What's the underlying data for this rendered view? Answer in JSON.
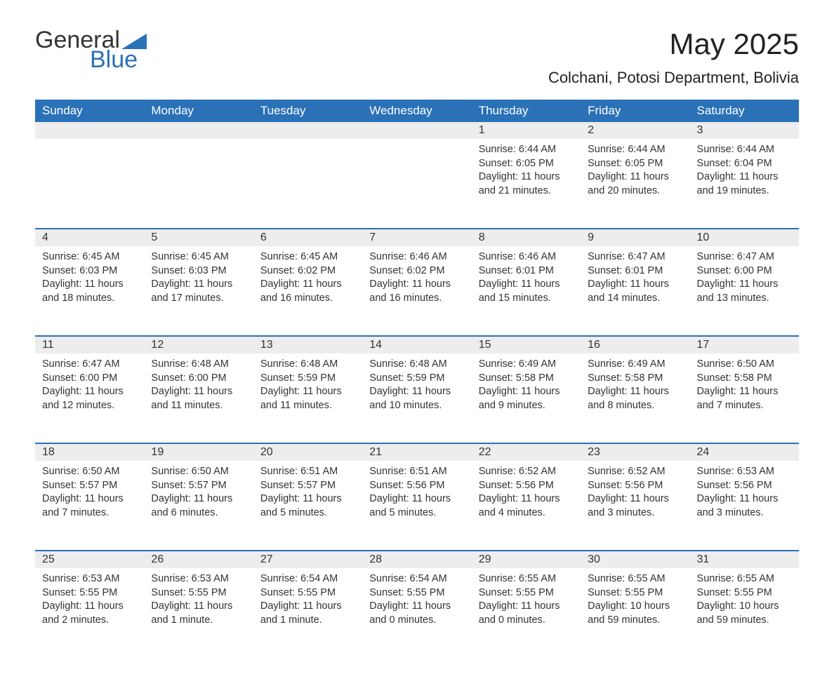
{
  "logo": {
    "word1": "General",
    "word2": "Blue",
    "accent_color": "#2a71b8"
  },
  "title": "May 2025",
  "location": "Colchani, Potosi Department, Bolivia",
  "colors": {
    "header_bg": "#2a71b8",
    "header_text": "#ffffff",
    "daynum_bg": "#ededed",
    "row_border": "#2a71b8",
    "text": "#333333",
    "background": "#ffffff"
  },
  "fonts": {
    "title_size": 42,
    "location_size": 22,
    "dayhead_size": 17,
    "daynum_size": 16,
    "body_size": 14.5
  },
  "weekdays": [
    "Sunday",
    "Monday",
    "Tuesday",
    "Wednesday",
    "Thursday",
    "Friday",
    "Saturday"
  ],
  "weeks": [
    [
      null,
      null,
      null,
      null,
      {
        "n": "1",
        "sunrise": "6:44 AM",
        "sunset": "6:05 PM",
        "daylight": "11 hours and 21 minutes."
      },
      {
        "n": "2",
        "sunrise": "6:44 AM",
        "sunset": "6:05 PM",
        "daylight": "11 hours and 20 minutes."
      },
      {
        "n": "3",
        "sunrise": "6:44 AM",
        "sunset": "6:04 PM",
        "daylight": "11 hours and 19 minutes."
      }
    ],
    [
      {
        "n": "4",
        "sunrise": "6:45 AM",
        "sunset": "6:03 PM",
        "daylight": "11 hours and 18 minutes."
      },
      {
        "n": "5",
        "sunrise": "6:45 AM",
        "sunset": "6:03 PM",
        "daylight": "11 hours and 17 minutes."
      },
      {
        "n": "6",
        "sunrise": "6:45 AM",
        "sunset": "6:02 PM",
        "daylight": "11 hours and 16 minutes."
      },
      {
        "n": "7",
        "sunrise": "6:46 AM",
        "sunset": "6:02 PM",
        "daylight": "11 hours and 16 minutes."
      },
      {
        "n": "8",
        "sunrise": "6:46 AM",
        "sunset": "6:01 PM",
        "daylight": "11 hours and 15 minutes."
      },
      {
        "n": "9",
        "sunrise": "6:47 AM",
        "sunset": "6:01 PM",
        "daylight": "11 hours and 14 minutes."
      },
      {
        "n": "10",
        "sunrise": "6:47 AM",
        "sunset": "6:00 PM",
        "daylight": "11 hours and 13 minutes."
      }
    ],
    [
      {
        "n": "11",
        "sunrise": "6:47 AM",
        "sunset": "6:00 PM",
        "daylight": "11 hours and 12 minutes."
      },
      {
        "n": "12",
        "sunrise": "6:48 AM",
        "sunset": "6:00 PM",
        "daylight": "11 hours and 11 minutes."
      },
      {
        "n": "13",
        "sunrise": "6:48 AM",
        "sunset": "5:59 PM",
        "daylight": "11 hours and 11 minutes."
      },
      {
        "n": "14",
        "sunrise": "6:48 AM",
        "sunset": "5:59 PM",
        "daylight": "11 hours and 10 minutes."
      },
      {
        "n": "15",
        "sunrise": "6:49 AM",
        "sunset": "5:58 PM",
        "daylight": "11 hours and 9 minutes."
      },
      {
        "n": "16",
        "sunrise": "6:49 AM",
        "sunset": "5:58 PM",
        "daylight": "11 hours and 8 minutes."
      },
      {
        "n": "17",
        "sunrise": "6:50 AM",
        "sunset": "5:58 PM",
        "daylight": "11 hours and 7 minutes."
      }
    ],
    [
      {
        "n": "18",
        "sunrise": "6:50 AM",
        "sunset": "5:57 PM",
        "daylight": "11 hours and 7 minutes."
      },
      {
        "n": "19",
        "sunrise": "6:50 AM",
        "sunset": "5:57 PM",
        "daylight": "11 hours and 6 minutes."
      },
      {
        "n": "20",
        "sunrise": "6:51 AM",
        "sunset": "5:57 PM",
        "daylight": "11 hours and 5 minutes."
      },
      {
        "n": "21",
        "sunrise": "6:51 AM",
        "sunset": "5:56 PM",
        "daylight": "11 hours and 5 minutes."
      },
      {
        "n": "22",
        "sunrise": "6:52 AM",
        "sunset": "5:56 PM",
        "daylight": "11 hours and 4 minutes."
      },
      {
        "n": "23",
        "sunrise": "6:52 AM",
        "sunset": "5:56 PM",
        "daylight": "11 hours and 3 minutes."
      },
      {
        "n": "24",
        "sunrise": "6:53 AM",
        "sunset": "5:56 PM",
        "daylight": "11 hours and 3 minutes."
      }
    ],
    [
      {
        "n": "25",
        "sunrise": "6:53 AM",
        "sunset": "5:55 PM",
        "daylight": "11 hours and 2 minutes."
      },
      {
        "n": "26",
        "sunrise": "6:53 AM",
        "sunset": "5:55 PM",
        "daylight": "11 hours and 1 minute."
      },
      {
        "n": "27",
        "sunrise": "6:54 AM",
        "sunset": "5:55 PM",
        "daylight": "11 hours and 1 minute."
      },
      {
        "n": "28",
        "sunrise": "6:54 AM",
        "sunset": "5:55 PM",
        "daylight": "11 hours and 0 minutes."
      },
      {
        "n": "29",
        "sunrise": "6:55 AM",
        "sunset": "5:55 PM",
        "daylight": "11 hours and 0 minutes."
      },
      {
        "n": "30",
        "sunrise": "6:55 AM",
        "sunset": "5:55 PM",
        "daylight": "10 hours and 59 minutes."
      },
      {
        "n": "31",
        "sunrise": "6:55 AM",
        "sunset": "5:55 PM",
        "daylight": "10 hours and 59 minutes."
      }
    ]
  ],
  "labels": {
    "sunrise": "Sunrise:",
    "sunset": "Sunset:",
    "daylight": "Daylight:"
  }
}
